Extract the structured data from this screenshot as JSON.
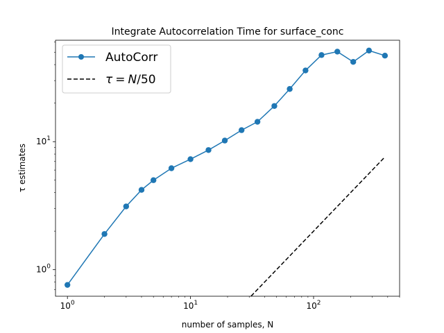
{
  "chart_data": {
    "type": "line",
    "title": "Integrate Autocorrelation Time for surface_conc",
    "xlabel": "number of samples, N",
    "ylabel": "τ estimates",
    "xscale": "log",
    "yscale": "log",
    "xlim": [
      0.8,
      500
    ],
    "ylim": [
      0.62,
      62
    ],
    "x_ticks": [
      {
        "value": 1,
        "base": "10",
        "exp": "0"
      },
      {
        "value": 10,
        "base": "10",
        "exp": "1"
      },
      {
        "value": 100,
        "base": "10",
        "exp": "2"
      }
    ],
    "y_ticks": [
      {
        "value": 1,
        "base": "10",
        "exp": "0"
      },
      {
        "value": 10,
        "base": "10",
        "exp": "1"
      }
    ],
    "grid": false,
    "legend_position": "top-left",
    "series": [
      {
        "name": "AutoCorr",
        "style": "solid-marker",
        "color": "#1f77b4",
        "x": [
          1,
          2,
          3,
          4,
          5,
          7,
          10,
          14,
          19,
          26,
          35,
          48,
          64,
          86,
          116,
          156,
          210,
          282,
          380
        ],
        "y": [
          0.76,
          1.9,
          3.12,
          4.2,
          5.0,
          6.2,
          7.3,
          8.6,
          10.2,
          12.3,
          14.3,
          19.0,
          25.8,
          36.0,
          47.5,
          50.5,
          42.0,
          51.5,
          47.0
        ]
      },
      {
        "name": "τ = N/50",
        "legend_math": {
          "symbol": "τ",
          "eq": "=",
          "var": "N",
          "rest": "/50"
        },
        "style": "dashed",
        "color": "#000000",
        "x": [
          31,
          380
        ],
        "y": [
          0.62,
          7.6
        ]
      }
    ]
  }
}
